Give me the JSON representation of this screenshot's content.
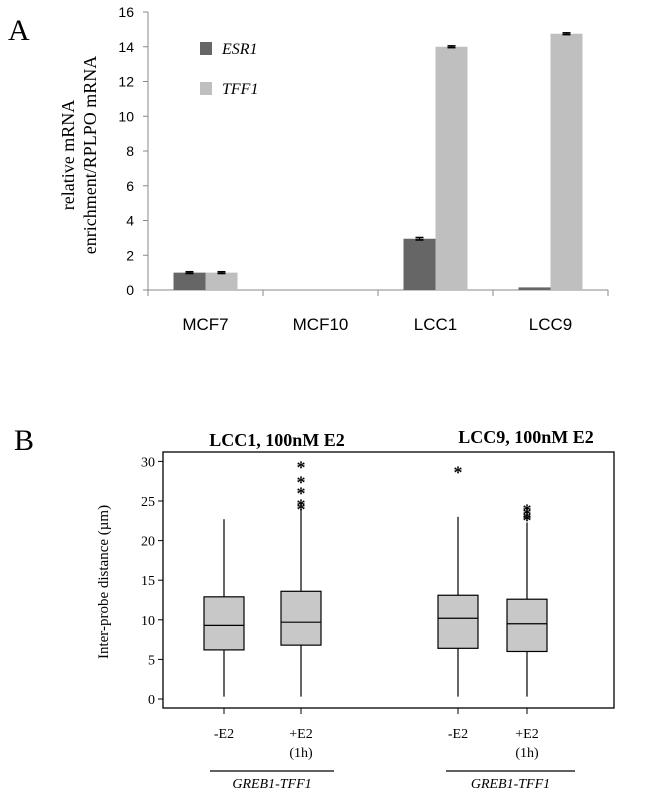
{
  "chart_data": [
    {
      "panel": "A",
      "type": "bar",
      "ylabel_lines": [
        "relative mRNA",
        "enrichment/RPLPO mRNA"
      ],
      "categories": [
        "MCF7",
        "MCF10",
        "LCC1",
        "LCC9"
      ],
      "ylim": [
        0,
        16
      ],
      "yticks": [
        0,
        2,
        4,
        6,
        8,
        10,
        12,
        14,
        16
      ],
      "grid": false,
      "legend_position": "top-left",
      "series": [
        {
          "name": "ESR1",
          "color": "#666666",
          "values": [
            1.0,
            0.0,
            2.95,
            0.15
          ],
          "errors": [
            0.05,
            0,
            0.07,
            0
          ]
        },
        {
          "name": "TFF1",
          "color": "#bfbfbf",
          "values": [
            1.0,
            0.0,
            14.0,
            14.75
          ],
          "errors": [
            0.05,
            0,
            0.05,
            0.05
          ]
        }
      ]
    },
    {
      "panel": "B",
      "type": "box",
      "ylabel": "Inter-probe distance (µm)",
      "ylim": [
        0,
        30
      ],
      "yticks": [
        0,
        5,
        10,
        15,
        20,
        25,
        30
      ],
      "box_color": "#c8c8c8",
      "groups": [
        {
          "title": "LCC1, 100nM E2",
          "group_label": "GREB1-TFF1",
          "boxes": [
            {
              "label": "-E2",
              "sublabel": "",
              "min": 0.3,
              "q1": 6.2,
              "median": 9.3,
              "q3": 12.9,
              "max": 22.7,
              "outliers": []
            },
            {
              "label": "+E2",
              "sublabel": "(1h)",
              "min": 0.3,
              "q1": 6.8,
              "median": 9.7,
              "q3": 13.6,
              "max": 24.0,
              "outliers": [
                24.3,
                24.8,
                26.3,
                27.7,
                29.6
              ]
            }
          ]
        },
        {
          "title": "LCC9,  100nM E2",
          "group_label": "GREB1-TFF1",
          "boxes": [
            {
              "label": "-E2",
              "sublabel": "",
              "min": 0.3,
              "q1": 6.4,
              "median": 10.2,
              "q3": 13.1,
              "max": 23.0,
              "outliers": [
                29.0
              ]
            },
            {
              "label": "+E2",
              "sublabel": "(1h)",
              "min": 0.3,
              "q1": 6.0,
              "median": 9.5,
              "q3": 12.6,
              "max": 22.3,
              "outliers": [
                22.9,
                23.2,
                23.7,
                24.2
              ]
            }
          ]
        }
      ]
    }
  ],
  "panel_labels": [
    "A",
    "B"
  ]
}
